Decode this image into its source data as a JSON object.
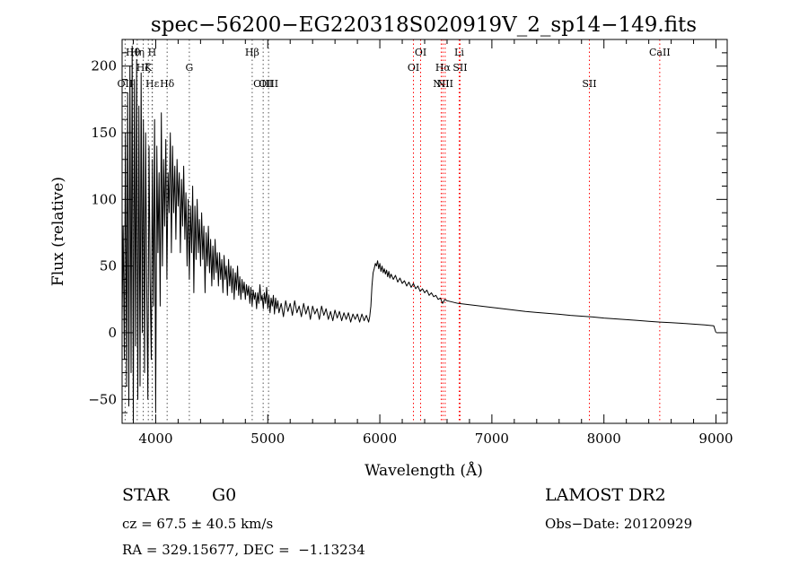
{
  "chart_data": {
    "type": "line",
    "title": "spec−56200−EG220318S020919V_2_sp14−149.fits",
    "xlabel": "Wavelength (Å)",
    "ylabel": "Flux (relative)",
    "xlim": [
      3700,
      9100
    ],
    "ylim": [
      -68,
      220
    ],
    "xticks": [
      4000,
      5000,
      6000,
      7000,
      8000,
      9000
    ],
    "yticks": [
      -50,
      0,
      50,
      100,
      150,
      200
    ],
    "xtick_labels": [
      "4000",
      "5000",
      "6000",
      "7000",
      "8000",
      "9000"
    ],
    "ytick_labels": [
      "−50",
      "0",
      "50",
      "100",
      "150",
      "200"
    ],
    "grid": false,
    "series": [
      {
        "points": [
          [
            3700,
            10
          ],
          [
            3710,
            80
          ],
          [
            3720,
            -20
          ],
          [
            3730,
            150
          ],
          [
            3740,
            -40
          ],
          [
            3750,
            180
          ],
          [
            3760,
            -55
          ],
          [
            3770,
            200
          ],
          [
            3780,
            -30
          ],
          [
            3790,
            215
          ],
          [
            3800,
            -65
          ],
          [
            3810,
            190
          ],
          [
            3820,
            -10
          ],
          [
            3830,
            205
          ],
          [
            3840,
            -50
          ],
          [
            3850,
            170
          ],
          [
            3860,
            -40
          ],
          [
            3870,
            195
          ],
          [
            3880,
            0
          ],
          [
            3890,
            160
          ],
          [
            3900,
            -30
          ],
          [
            3910,
            150
          ],
          [
            3920,
            30
          ],
          [
            3930,
            -50
          ],
          [
            3940,
            140
          ],
          [
            3950,
            40
          ],
          [
            3960,
            -20
          ],
          [
            3970,
            130
          ],
          [
            3980,
            20
          ],
          [
            3990,
            160
          ],
          [
            4000,
            -60
          ],
          [
            4010,
            140
          ],
          [
            4020,
            60
          ],
          [
            4030,
            120
          ],
          [
            4040,
            20
          ],
          [
            4050,
            165
          ],
          [
            4060,
            50
          ],
          [
            4070,
            130
          ],
          [
            4080,
            80
          ],
          [
            4090,
            145
          ],
          [
            4100,
            40
          ],
          [
            4110,
            120
          ],
          [
            4120,
            90
          ],
          [
            4130,
            150
          ],
          [
            4140,
            60
          ],
          [
            4150,
            140
          ],
          [
            4160,
            90
          ],
          [
            4170,
            125
          ],
          [
            4180,
            70
          ],
          [
            4190,
            130
          ],
          [
            4200,
            95
          ],
          [
            4210,
            120
          ],
          [
            4220,
            60
          ],
          [
            4230,
            115
          ],
          [
            4240,
            80
          ],
          [
            4250,
            125
          ],
          [
            4260,
            70
          ],
          [
            4270,
            105
          ],
          [
            4280,
            50
          ],
          [
            4290,
            100
          ],
          [
            4300,
            40
          ],
          [
            4310,
            95
          ],
          [
            4320,
            60
          ],
          [
            4330,
            110
          ],
          [
            4340,
            30
          ],
          [
            4350,
            95
          ],
          [
            4360,
            55
          ],
          [
            4370,
            100
          ],
          [
            4380,
            60
          ],
          [
            4390,
            85
          ],
          [
            4400,
            50
          ],
          [
            4410,
            90
          ],
          [
            4420,
            55
          ],
          [
            4430,
            80
          ],
          [
            4440,
            30
          ],
          [
            4450,
            75
          ],
          [
            4460,
            50
          ],
          [
            4470,
            80
          ],
          [
            4480,
            45
          ],
          [
            4490,
            70
          ],
          [
            4500,
            35
          ],
          [
            4510,
            65
          ],
          [
            4520,
            40
          ],
          [
            4530,
            70
          ],
          [
            4540,
            45
          ],
          [
            4550,
            60
          ],
          [
            4560,
            35
          ],
          [
            4570,
            60
          ],
          [
            4580,
            40
          ],
          [
            4590,
            55
          ],
          [
            4600,
            30
          ],
          [
            4610,
            58
          ],
          [
            4620,
            40
          ],
          [
            4630,
            50
          ],
          [
            4640,
            28
          ],
          [
            4650,
            55
          ],
          [
            4660,
            35
          ],
          [
            4670,
            50
          ],
          [
            4680,
            30
          ],
          [
            4690,
            48
          ],
          [
            4700,
            25
          ],
          [
            4710,
            45
          ],
          [
            4720,
            32
          ],
          [
            4730,
            50
          ],
          [
            4740,
            28
          ],
          [
            4750,
            42
          ],
          [
            4760,
            25
          ],
          [
            4770,
            40
          ],
          [
            4780,
            30
          ],
          [
            4790,
            38
          ],
          [
            4800,
            25
          ],
          [
            4810,
            36
          ],
          [
            4820,
            28
          ],
          [
            4830,
            35
          ],
          [
            4840,
            22
          ],
          [
            4850,
            34
          ],
          [
            4860,
            20
          ],
          [
            4870,
            32
          ],
          [
            4880,
            25
          ],
          [
            4890,
            30
          ],
          [
            4900,
            18
          ],
          [
            4910,
            30
          ],
          [
            4920,
            22
          ],
          [
            4930,
            36
          ],
          [
            4940,
            24
          ],
          [
            4950,
            28
          ],
          [
            4960,
            18
          ],
          [
            4970,
            30
          ],
          [
            4980,
            22
          ],
          [
            4990,
            34
          ],
          [
            5000,
            18
          ],
          [
            5010,
            28
          ],
          [
            5020,
            15
          ],
          [
            5030,
            26
          ],
          [
            5040,
            20
          ],
          [
            5050,
            28
          ],
          [
            5060,
            14
          ],
          [
            5070,
            26
          ],
          [
            5080,
            18
          ],
          [
            5090,
            24
          ],
          [
            5100,
            15
          ],
          [
            5120,
            22
          ],
          [
            5140,
            12
          ],
          [
            5160,
            24
          ],
          [
            5180,
            16
          ],
          [
            5200,
            22
          ],
          [
            5220,
            13
          ],
          [
            5240,
            24
          ],
          [
            5260,
            15
          ],
          [
            5280,
            20
          ],
          [
            5300,
            12
          ],
          [
            5320,
            22
          ],
          [
            5340,
            14
          ],
          [
            5360,
            20
          ],
          [
            5380,
            10
          ],
          [
            5400,
            20
          ],
          [
            5420,
            14
          ],
          [
            5440,
            18
          ],
          [
            5460,
            10
          ],
          [
            5480,
            20
          ],
          [
            5500,
            13
          ],
          [
            5520,
            18
          ],
          [
            5540,
            10
          ],
          [
            5560,
            16
          ],
          [
            5580,
            9
          ],
          [
            5600,
            17
          ],
          [
            5620,
            11
          ],
          [
            5640,
            16
          ],
          [
            5660,
            9
          ],
          [
            5680,
            15
          ],
          [
            5700,
            10
          ],
          [
            5720,
            15
          ],
          [
            5740,
            8
          ],
          [
            5760,
            14
          ],
          [
            5780,
            10
          ],
          [
            5800,
            14
          ],
          [
            5820,
            8
          ],
          [
            5840,
            14
          ],
          [
            5860,
            9
          ],
          [
            5880,
            13
          ],
          [
            5900,
            8
          ],
          [
            5910,
            12
          ],
          [
            5920,
            20
          ],
          [
            5930,
            35
          ],
          [
            5940,
            45
          ],
          [
            5950,
            48
          ],
          [
            5960,
            52
          ],
          [
            5970,
            50
          ],
          [
            5980,
            54
          ],
          [
            5990,
            48
          ],
          [
            6000,
            52
          ],
          [
            6010,
            46
          ],
          [
            6020,
            50
          ],
          [
            6030,
            45
          ],
          [
            6040,
            48
          ],
          [
            6050,
            44
          ],
          [
            6060,
            47
          ],
          [
            6070,
            42
          ],
          [
            6080,
            46
          ],
          [
            6090,
            41
          ],
          [
            6100,
            44
          ],
          [
            6120,
            40
          ],
          [
            6140,
            43
          ],
          [
            6160,
            38
          ],
          [
            6180,
            41
          ],
          [
            6200,
            37
          ],
          [
            6220,
            39
          ],
          [
            6240,
            35
          ],
          [
            6260,
            38
          ],
          [
            6280,
            34
          ],
          [
            6300,
            37
          ],
          [
            6320,
            33
          ],
          [
            6340,
            35
          ],
          [
            6360,
            31
          ],
          [
            6380,
            33
          ],
          [
            6400,
            30
          ],
          [
            6420,
            32
          ],
          [
            6440,
            28
          ],
          [
            6460,
            30
          ],
          [
            6480,
            27
          ],
          [
            6500,
            28
          ],
          [
            6520,
            25
          ],
          [
            6540,
            26
          ],
          [
            6560,
            22
          ],
          [
            6580,
            25
          ],
          [
            6600,
            24
          ],
          [
            6650,
            23
          ],
          [
            6700,
            22
          ],
          [
            6750,
            21.5
          ],
          [
            6800,
            21
          ],
          [
            6850,
            20.5
          ],
          [
            6900,
            20
          ],
          [
            6950,
            19.5
          ],
          [
            7000,
            19
          ],
          [
            7100,
            18
          ],
          [
            7200,
            17
          ],
          [
            7300,
            16
          ],
          [
            7400,
            15.2
          ],
          [
            7500,
            14.5
          ],
          [
            7600,
            13.8
          ],
          [
            7700,
            13
          ],
          [
            7800,
            12.4
          ],
          [
            7900,
            11.8
          ],
          [
            8000,
            11
          ],
          [
            8100,
            10.4
          ],
          [
            8200,
            9.8
          ],
          [
            8300,
            9.2
          ],
          [
            8400,
            8.6
          ],
          [
            8500,
            8
          ],
          [
            8600,
            7.5
          ],
          [
            8700,
            7
          ],
          [
            8800,
            6.4
          ],
          [
            8900,
            5.8
          ],
          [
            8980,
            5.2
          ],
          [
            9000,
            0
          ]
        ]
      }
    ],
    "line_markers": [
      {
        "label": "OII",
        "wavelength": 3727,
        "row": 3
      },
      {
        "label": "Hθ",
        "wavelength": 3797,
        "row": 1
      },
      {
        "label": "Hη",
        "wavelength": 3835,
        "row": 1
      },
      {
        "label": "Hζ",
        "wavelength": 3889,
        "row": 2
      },
      {
        "label": "Hε",
        "wavelength": 3970,
        "row": 3
      },
      {
        "label": "K",
        "wavelength": 3934,
        "row": 2
      },
      {
        "label": "H",
        "wavelength": 3968,
        "row": 1
      },
      {
        "label": "Hδ",
        "wavelength": 4102,
        "row": 3
      },
      {
        "label": "G",
        "wavelength": 4300,
        "row": 2
      },
      {
        "label": "Hβ",
        "wavelength": 4861,
        "row": 1
      },
      {
        "label": "OIII",
        "wavelength": 4959,
        "row": 3
      },
      {
        "label": "OIII",
        "wavelength": 5007,
        "row": 3
      },
      {
        "label": "OI",
        "wavelength": 6300,
        "row": 2
      },
      {
        "label": "OI",
        "wavelength": 6364,
        "row": 1
      },
      {
        "label": "NII",
        "wavelength": 6548,
        "row": 3
      },
      {
        "label": "Hα",
        "wavelength": 6563,
        "row": 2
      },
      {
        "label": "NII",
        "wavelength": 6583,
        "row": 3
      },
      {
        "label": "Li",
        "wavelength": 6708,
        "row": 1
      },
      {
        "label": "SII",
        "wavelength": 6716,
        "row": 2
      },
      {
        "label": "SII",
        "wavelength": 7870,
        "row": 3
      },
      {
        "label": "CaII",
        "wavelength": 8498,
        "row": 1
      }
    ],
    "colors": {
      "line": "#000000",
      "marker": "#ff0000",
      "marker_dark": "#555555"
    }
  },
  "info": {
    "class": "STAR",
    "subclass": "G0",
    "redshift": "cz = 67.5 ± 40.5 km/s",
    "coords": "RA = 329.15677, DEC =  −1.13234",
    "survey": "LAMOST DR2",
    "obs_date": "Obs−Date: 20120929"
  }
}
